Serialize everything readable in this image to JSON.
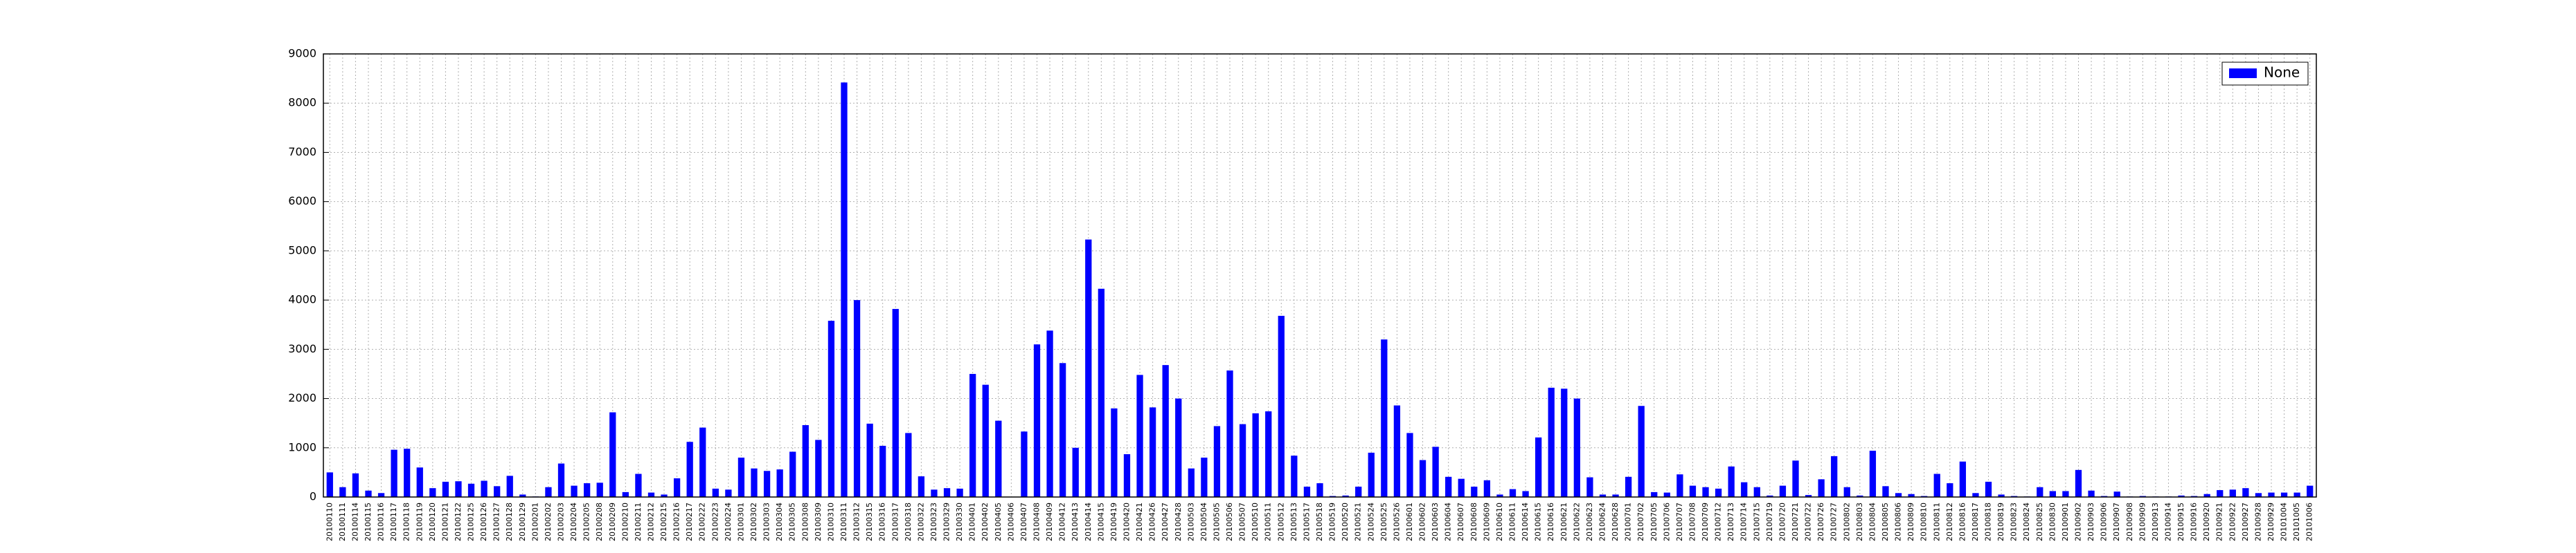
{
  "chart_data": {
    "type": "bar",
    "categories": [
      "20100110",
      "20100111",
      "20100114",
      "20100115",
      "20100116",
      "20100117",
      "20100118",
      "20100119",
      "20100120",
      "20100121",
      "20100122",
      "20100125",
      "20100126",
      "20100127",
      "20100128",
      "20100129",
      "20100201",
      "20100202",
      "20100203",
      "20100204",
      "20100205",
      "20100208",
      "20100209",
      "20100210",
      "20100211",
      "20100212",
      "20100215",
      "20100216",
      "20100217",
      "20100222",
      "20100223",
      "20100224",
      "20100301",
      "20100302",
      "20100303",
      "20100304",
      "20100305",
      "20100308",
      "20100309",
      "20100310",
      "20100311",
      "20100312",
      "20100315",
      "20100316",
      "20100317",
      "20100318",
      "20100322",
      "20100323",
      "20100329",
      "20100330",
      "20100401",
      "20100402",
      "20100405",
      "20100406",
      "20100407",
      "20100408",
      "20100409",
      "20100412",
      "20100413",
      "20100414",
      "20100415",
      "20100419",
      "20100420",
      "20100421",
      "20100426",
      "20100427",
      "20100428",
      "20100503",
      "20100504",
      "20100505",
      "20100506",
      "20100507",
      "20100510",
      "20100511",
      "20100512",
      "20100513",
      "20100517",
      "20100518",
      "20100519",
      "20100520",
      "20100521",
      "20100524",
      "20100525",
      "20100526",
      "20100601",
      "20100602",
      "20100603",
      "20100604",
      "20100607",
      "20100608",
      "20100609",
      "20100610",
      "20100611",
      "20100614",
      "20100615",
      "20100616",
      "20100621",
      "20100622",
      "20100623",
      "20100624",
      "20100628",
      "20100701",
      "20100702",
      "20100705",
      "20100706",
      "20100707",
      "20100708",
      "20100709",
      "20100712",
      "20100713",
      "20100714",
      "20100715",
      "20100719",
      "20100720",
      "20100721",
      "20100722",
      "20100726",
      "20100727",
      "20100802",
      "20100803",
      "20100804",
      "20100805",
      "20100806",
      "20100809",
      "20100810",
      "20100811",
      "20100812",
      "20100816",
      "20100817",
      "20100818",
      "20100819",
      "20100823",
      "20100824",
      "20100825",
      "20100830",
      "20100901",
      "20100902",
      "20100903",
      "20100906",
      "20100907",
      "20100908",
      "20100909",
      "20100913",
      "20100914",
      "20100915",
      "20100916",
      "20100920",
      "20100921",
      "20100922",
      "20100927",
      "20100928",
      "20100929",
      "20101004",
      "20101005",
      "20101006"
    ],
    "series": [
      {
        "name": "None",
        "color": "#0000ff",
        "values": [
          500,
          200,
          480,
          130,
          80,
          960,
          980,
          600,
          180,
          310,
          320,
          270,
          330,
          220,
          430,
          50,
          10,
          200,
          680,
          230,
          280,
          290,
          1720,
          100,
          470,
          90,
          50,
          380,
          1120,
          1410,
          170,
          150,
          800,
          580,
          530,
          560,
          920,
          1460,
          1160,
          3580,
          8420,
          4000,
          1490,
          1040,
          3820,
          1300,
          420,
          150,
          180,
          170,
          2500,
          2280,
          1550,
          0,
          1330,
          3100,
          3380,
          2720,
          1000,
          5230,
          4230,
          1800,
          870,
          2480,
          1820,
          2680,
          2000,
          580,
          800,
          1440,
          2570,
          1480,
          1700,
          1740,
          3680,
          840,
          210,
          280,
          20,
          30,
          210,
          900,
          3200,
          1860,
          1300,
          750,
          1020,
          410,
          370,
          210,
          340,
          50,
          160,
          120,
          1210,
          2220,
          2200,
          2000,
          400,
          50,
          50,
          410,
          1850,
          100,
          90,
          460,
          230,
          200,
          170,
          620,
          300,
          200,
          30,
          230,
          740,
          40,
          360,
          830,
          200,
          30,
          940,
          220,
          80,
          60,
          20,
          470,
          280,
          720,
          80,
          310,
          50,
          20,
          10,
          200,
          120,
          120,
          550,
          130,
          20,
          110,
          10,
          20,
          10,
          10,
          30,
          20,
          60,
          140,
          150,
          180,
          80,
          90,
          90,
          90,
          230
        ]
      }
    ],
    "ylim": [
      0,
      9000
    ],
    "yticks": [
      0,
      1000,
      2000,
      3000,
      4000,
      5000,
      6000,
      7000,
      8000,
      9000
    ],
    "grid": true,
    "legend": "upper right"
  }
}
